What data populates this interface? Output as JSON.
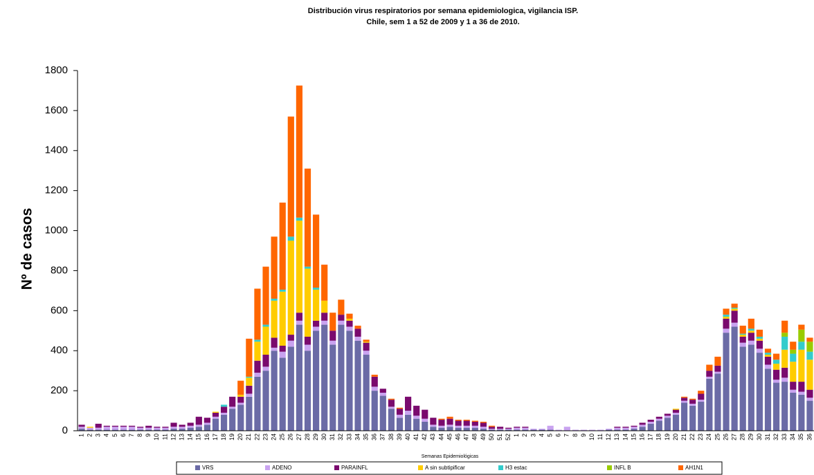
{
  "chart_data": {
    "type": "stacked_bar",
    "title": "Distribución virus respiratorios por semana epidemiologica, vigilancia ISP.",
    "subtitle": "Chile, sem 1 a 52 de 2009 y 1 a 36 de 2010.",
    "y_label": "Nº de casos",
    "x_label": "Semanas Epidemiológicas",
    "categories": [
      "1",
      "2",
      "3",
      "4",
      "5",
      "6",
      "7",
      "8",
      "9",
      "10",
      "11",
      "12",
      "13",
      "14",
      "15",
      "16",
      "17",
      "18",
      "19",
      "20",
      "21",
      "22",
      "23",
      "24",
      "25",
      "26",
      "27",
      "28",
      "29",
      "30",
      "31",
      "32",
      "33",
      "34",
      "35",
      "36",
      "37",
      "38",
      "39",
      "40",
      "41",
      "42",
      "43",
      "44",
      "45",
      "46",
      "47",
      "48",
      "49",
      "50",
      "51",
      "52",
      "1",
      "2",
      "3",
      "4",
      "5",
      "6",
      "7",
      "8",
      "9",
      "10",
      "11",
      "12",
      "13",
      "14",
      "15",
      "16",
      "17",
      "18",
      "19",
      "20",
      "21",
      "22",
      "23",
      "24",
      "25",
      "26",
      "27",
      "28",
      "29",
      "30",
      "31",
      "32",
      "33",
      "34",
      "35",
      "36"
    ],
    "ylim": [
      0,
      1800
    ],
    "yticks": [
      0,
      200,
      400,
      600,
      800,
      1000,
      1200,
      1400,
      1600,
      1800
    ],
    "grid": false,
    "legend": "bottom",
    "series": [
      {
        "name": "VRS",
        "color": "#6b6ba6",
        "values": [
          10,
          5,
          5,
          5,
          5,
          5,
          5,
          5,
          5,
          5,
          5,
          10,
          10,
          15,
          20,
          30,
          60,
          80,
          110,
          130,
          170,
          270,
          300,
          400,
          365,
          420,
          530,
          400,
          500,
          530,
          430,
          530,
          500,
          450,
          380,
          200,
          175,
          110,
          65,
          80,
          60,
          45,
          20,
          15,
          20,
          15,
          15,
          15,
          10,
          5,
          5,
          5,
          5,
          5,
          5,
          5,
          5,
          0,
          0,
          0,
          0,
          0,
          0,
          5,
          5,
          5,
          10,
          20,
          35,
          50,
          65,
          80,
          140,
          125,
          145,
          260,
          285,
          490,
          520,
          420,
          430,
          390,
          310,
          240,
          245,
          190,
          180,
          150
        ]
      },
      {
        "name": "ADENO",
        "color": "#c9a3f0",
        "values": [
          10,
          10,
          10,
          15,
          15,
          15,
          15,
          10,
          10,
          10,
          10,
          10,
          10,
          10,
          10,
          10,
          10,
          10,
          10,
          10,
          15,
          20,
          20,
          15,
          30,
          30,
          20,
          30,
          20,
          20,
          20,
          20,
          20,
          20,
          20,
          20,
          15,
          10,
          15,
          20,
          15,
          15,
          10,
          10,
          10,
          10,
          10,
          10,
          10,
          5,
          5,
          5,
          10,
          10,
          5,
          5,
          20,
          5,
          20,
          5,
          5,
          5,
          5,
          5,
          10,
          10,
          10,
          10,
          10,
          10,
          10,
          10,
          10,
          10,
          10,
          10,
          10,
          20,
          20,
          20,
          20,
          20,
          20,
          15,
          20,
          15,
          15,
          15
        ]
      },
      {
        "name": "PARAINFL",
        "color": "#7a0a6e",
        "values": [
          10,
          0,
          20,
          5,
          5,
          5,
          5,
          5,
          10,
          5,
          5,
          20,
          10,
          15,
          40,
          25,
          20,
          30,
          50,
          30,
          40,
          60,
          60,
          50,
          30,
          30,
          40,
          40,
          30,
          40,
          50,
          30,
          30,
          40,
          40,
          50,
          20,
          35,
          30,
          70,
          50,
          45,
          35,
          30,
          30,
          25,
          25,
          20,
          20,
          10,
          10,
          5,
          5,
          5,
          0,
          0,
          0,
          0,
          0,
          0,
          0,
          0,
          0,
          0,
          5,
          5,
          5,
          10,
          10,
          10,
          10,
          15,
          15,
          20,
          30,
          30,
          30,
          50,
          60,
          30,
          40,
          40,
          40,
          50,
          50,
          40,
          50,
          40
        ]
      },
      {
        "name": "A sin subtipificar",
        "color": "#ffcc00",
        "values": [
          0,
          5,
          0,
          0,
          0,
          0,
          0,
          0,
          0,
          0,
          0,
          0,
          0,
          0,
          0,
          0,
          5,
          0,
          0,
          10,
          40,
          95,
          140,
          185,
          270,
          470,
          460,
          340,
          155,
          60,
          0,
          0,
          10,
          0,
          5,
          0,
          0,
          0,
          0,
          0,
          0,
          0,
          0,
          0,
          0,
          0,
          0,
          0,
          0,
          0,
          0,
          0,
          0,
          0,
          0,
          0,
          0,
          0,
          0,
          0,
          0,
          0,
          0,
          0,
          0,
          0,
          0,
          0,
          0,
          0,
          0,
          5,
          0,
          0,
          0,
          0,
          0,
          10,
          10,
          10,
          10,
          10,
          10,
          30,
          90,
          100,
          160,
          150
        ]
      },
      {
        "name": "H3 estac",
        "color": "#33cccc",
        "values": [
          0,
          0,
          0,
          0,
          0,
          0,
          0,
          0,
          0,
          0,
          0,
          0,
          0,
          0,
          0,
          0,
          0,
          10,
          0,
          0,
          5,
          10,
          10,
          10,
          10,
          20,
          15,
          10,
          10,
          0,
          0,
          0,
          0,
          0,
          0,
          0,
          0,
          0,
          0,
          0,
          0,
          0,
          0,
          0,
          0,
          0,
          0,
          0,
          0,
          0,
          0,
          0,
          0,
          0,
          0,
          0,
          0,
          0,
          0,
          0,
          0,
          0,
          0,
          0,
          0,
          0,
          0,
          0,
          0,
          0,
          0,
          0,
          0,
          0,
          0,
          0,
          0,
          10,
          5,
          5,
          10,
          10,
          10,
          20,
          65,
          40,
          40,
          40
        ]
      },
      {
        "name": "INFL B",
        "color": "#99cc00",
        "values": [
          0,
          0,
          0,
          0,
          0,
          0,
          0,
          0,
          0,
          0,
          0,
          0,
          0,
          0,
          0,
          0,
          0,
          0,
          0,
          0,
          0,
          0,
          0,
          0,
          0,
          0,
          0,
          0,
          0,
          0,
          0,
          0,
          0,
          0,
          0,
          0,
          0,
          0,
          0,
          0,
          0,
          0,
          0,
          0,
          0,
          0,
          0,
          0,
          0,
          0,
          0,
          0,
          0,
          0,
          0,
          0,
          0,
          0,
          0,
          0,
          0,
          0,
          0,
          0,
          0,
          0,
          0,
          0,
          0,
          0,
          0,
          0,
          0,
          0,
          0,
          0,
          0,
          0,
          0,
          0,
          0,
          0,
          0,
          0,
          20,
          20,
          60,
          50
        ]
      },
      {
        "name": "AH1N1",
        "color": "#ff6600",
        "values": [
          0,
          0,
          0,
          0,
          0,
          0,
          0,
          0,
          0,
          0,
          0,
          0,
          0,
          0,
          0,
          0,
          0,
          0,
          0,
          70,
          190,
          255,
          290,
          310,
          435,
          600,
          660,
          490,
          365,
          180,
          90,
          75,
          25,
          15,
          10,
          10,
          0,
          5,
          5,
          0,
          0,
          0,
          0,
          5,
          10,
          5,
          5,
          5,
          5,
          5,
          0,
          0,
          0,
          0,
          0,
          0,
          0,
          0,
          0,
          0,
          0,
          0,
          0,
          0,
          0,
          0,
          0,
          0,
          0,
          0,
          0,
          0,
          5,
          5,
          15,
          30,
          45,
          30,
          20,
          40,
          50,
          35,
          20,
          30,
          60,
          40,
          25,
          20
        ]
      }
    ]
  }
}
